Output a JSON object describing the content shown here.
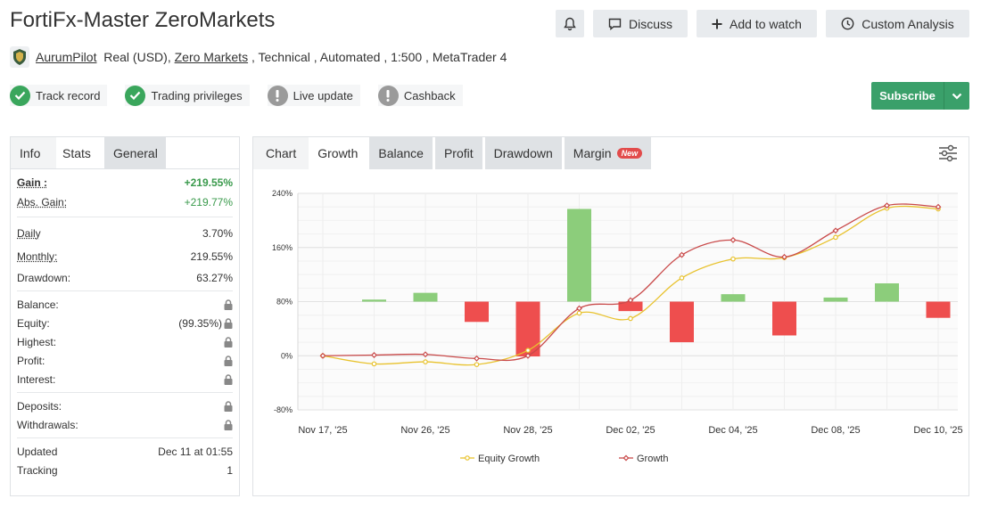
{
  "header": {
    "title": "FortiFx-Master ZeroMarkets",
    "discuss_label": "Discuss",
    "watch_label": "Add to watch",
    "analysis_label": "Custom Analysis"
  },
  "meta": {
    "author": "AurumPilot",
    "account": "Real (USD),",
    "broker": "Zero Markets",
    "details": " , Technical , Automated , 1:500 , MetaTrader 4"
  },
  "badges": [
    {
      "label": "Track record",
      "status": "ok"
    },
    {
      "label": "Trading privileges",
      "status": "ok"
    },
    {
      "label": "Live update",
      "status": "warn"
    },
    {
      "label": "Cashback",
      "status": "warn"
    }
  ],
  "subscribe_label": "Subscribe",
  "left_tabs": {
    "info": "Info",
    "stats": "Stats",
    "general": "General"
  },
  "stats": {
    "gain_k": "Gain :",
    "gain_v": "+219.55%",
    "absgain_k": "Abs. Gain:",
    "absgain_v": "+219.77%",
    "daily_k": "Daily",
    "daily_v": "3.70%",
    "monthly_k": "Monthly:",
    "monthly_v": "219.55%",
    "drawdown_k": "Drawdown:",
    "drawdown_v": "63.27%",
    "balance_k": "Balance:",
    "equity_k": "Equity:",
    "equity_v": "(99.35%)",
    "highest_k": "Highest:",
    "profit_k": "Profit:",
    "interest_k": "Interest:",
    "deposits_k": "Deposits:",
    "withdrawals_k": "Withdrawals:",
    "updated_k": "Updated",
    "updated_v": "Dec 11 at 01:55",
    "tracking_k": "Tracking",
    "tracking_v": "1"
  },
  "right_tabs": {
    "chart": "Chart",
    "growth": "Growth",
    "balance": "Balance",
    "profit": "Profit",
    "drawdown": "Drawdown",
    "margin": "Margin",
    "new_badge": "New"
  },
  "chart_data": {
    "type": "line",
    "ylim": [
      -80,
      240
    ],
    "y_ticks": [
      240,
      160,
      80,
      0,
      -80
    ],
    "y_tick_labels": [
      "240%",
      "160%",
      "80%",
      "0%",
      "-80%"
    ],
    "x_tick_labels": [
      "Nov 17, '25",
      "Nov 26, '25",
      "Nov 28, '25",
      "Dec 02, '25",
      "Dec 04, '25",
      "Dec 08, '25",
      "Dec 10, '25"
    ],
    "x_positions": [
      0,
      1,
      2,
      3,
      4,
      5,
      6,
      7,
      8,
      9,
      10,
      11,
      12
    ],
    "bars": [
      null,
      3,
      13,
      -30,
      -81,
      137,
      -14,
      -60,
      11,
      -50,
      6,
      27,
      -24
    ],
    "series": [
      {
        "name": "Equity Growth",
        "color": "#e8c22d",
        "values": [
          0,
          -12,
          -9,
          -13,
          8,
          63,
          55,
          115,
          143,
          145,
          175,
          218,
          217
        ]
      },
      {
        "name": "Growth",
        "color": "#c94a4a",
        "values": [
          0,
          1,
          2,
          -4,
          0,
          70,
          82,
          149,
          171,
          146,
          185,
          222,
          220
        ]
      }
    ],
    "bar_colors": {
      "positive": "#8ccd7b",
      "negative": "#ee4e4e"
    },
    "grid": true,
    "legend": "bottom"
  }
}
